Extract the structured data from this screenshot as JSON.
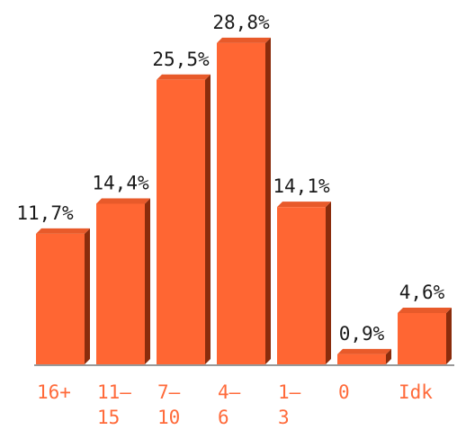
{
  "chart_data": {
    "type": "bar",
    "categories": [
      [
        "16+"
      ],
      [
        "11–",
        "15"
      ],
      [
        "7–",
        "10"
      ],
      [
        "4–",
        "6"
      ],
      [
        "1–",
        "3"
      ],
      [
        "0"
      ],
      [
        "Idk"
      ]
    ],
    "values": [
      11.7,
      14.4,
      25.5,
      28.8,
      14.1,
      0.9,
      4.6
    ],
    "data_labels": [
      "11,7%",
      "14,4%",
      "25,5%",
      "28,8%",
      "14,1%",
      "0,9%",
      "4,6%"
    ],
    "title": "",
    "xlabel": "",
    "ylabel": "",
    "ylim": [
      0,
      30
    ],
    "grid": false,
    "legend": "none",
    "colors": {
      "bar_front": "#ff6633",
      "bar_top": "#e85a2a",
      "bar_side": "#8a2c0c",
      "tick_text": "#ff6a3a",
      "label_text": "#1a1a1a",
      "axis": "#333333"
    }
  }
}
